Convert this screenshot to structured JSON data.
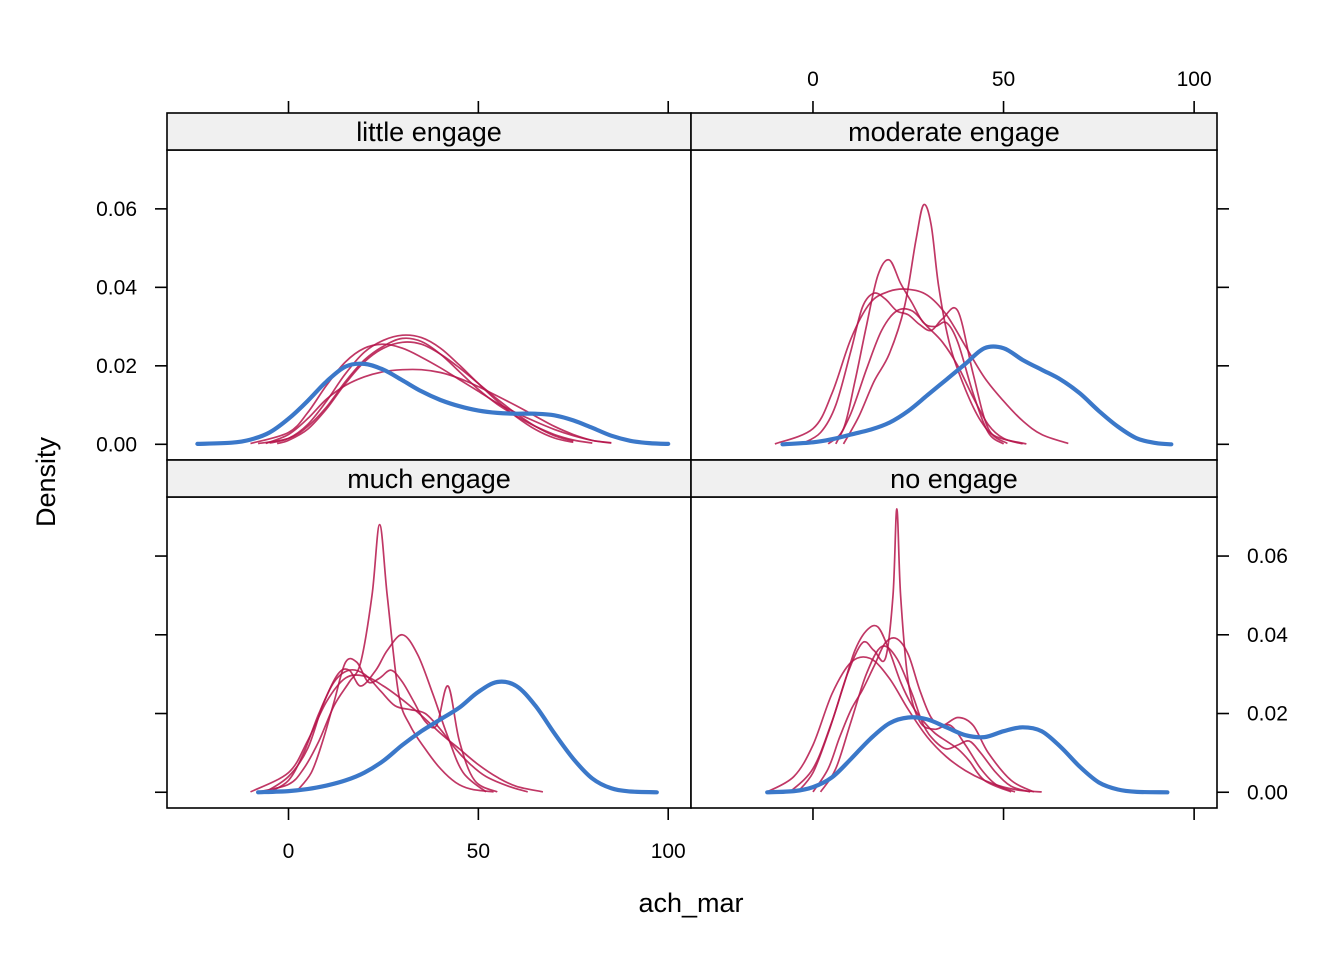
{
  "chart_data": {
    "type": "line",
    "xlabel": "ach_mar",
    "ylabel": "Density",
    "xlim": [
      -32,
      106
    ],
    "ylim": [
      -0.004,
      0.075
    ],
    "x_ticks": [
      0,
      50,
      100
    ],
    "y_ticks": [
      0.0,
      0.02,
      0.04,
      0.06
    ],
    "y_tick_labels": [
      "0.00",
      "0.02",
      "0.04",
      "0.06"
    ],
    "observed_color": "#3b78c9",
    "imputed_color": "#b5144a",
    "panels": [
      {
        "label": "little engage",
        "observed": {
          "x": [
            -24,
            -15,
            -10,
            -5,
            0,
            5,
            10,
            15,
            20,
            25,
            30,
            35,
            40,
            45,
            50,
            55,
            60,
            65,
            70,
            75,
            80,
            85,
            90,
            95,
            100
          ],
          "y": [
            0.0001,
            0.0004,
            0.0012,
            0.003,
            0.0065,
            0.011,
            0.016,
            0.0198,
            0.0205,
            0.019,
            0.0163,
            0.0135,
            0.0113,
            0.0097,
            0.0086,
            0.008,
            0.0078,
            0.0078,
            0.0074,
            0.0061,
            0.0042,
            0.0022,
            0.0009,
            0.0003,
            0.0001
          ]
        },
        "imputed": [
          {
            "x": [
              -10,
              0,
              5,
              10,
              15,
              20,
              25,
              30,
              35,
              40,
              45,
              50,
              55,
              60,
              65,
              70,
              75,
              80,
              85
            ],
            "y": [
              0.0002,
              0.003,
              0.008,
              0.015,
              0.021,
              0.0245,
              0.0255,
              0.0245,
              0.0222,
              0.0195,
              0.0165,
              0.0135,
              0.0105,
              0.008,
              0.0058,
              0.0038,
              0.0022,
              0.001,
              0.0004
            ]
          },
          {
            "x": [
              -8,
              0,
              5,
              10,
              15,
              20,
              25,
              30,
              35,
              40,
              45,
              50,
              55,
              60,
              65,
              70,
              75,
              80
            ],
            "y": [
              0.0002,
              0.0015,
              0.0045,
              0.0095,
              0.016,
              0.0215,
              0.025,
              0.027,
              0.0262,
              0.023,
              0.0185,
              0.014,
              0.0102,
              0.0072,
              0.0046,
              0.0025,
              0.0011,
              0.0003
            ]
          },
          {
            "x": [
              -5,
              0,
              5,
              10,
              15,
              20,
              25,
              30,
              35,
              40,
              45,
              50,
              55,
              60,
              65,
              70,
              75
            ],
            "y": [
              0.0003,
              0.0015,
              0.005,
              0.011,
              0.018,
              0.0235,
              0.0265,
              0.0278,
              0.0272,
              0.0245,
              0.0202,
              0.0155,
              0.011,
              0.007,
              0.0038,
              0.0016,
              0.0005
            ]
          },
          {
            "x": [
              -3,
              0,
              5,
              10,
              15,
              20,
              25,
              30,
              35,
              40,
              45,
              50,
              55,
              60,
              65,
              70,
              75
            ],
            "y": [
              0.0002,
              0.001,
              0.0038,
              0.009,
              0.0155,
              0.021,
              0.0245,
              0.026,
              0.0255,
              0.023,
              0.0195,
              0.0155,
              0.0115,
              0.0078,
              0.0046,
              0.0022,
              0.0008
            ]
          },
          {
            "x": [
              -6,
              0,
              5,
              10,
              15,
              20,
              25,
              30,
              35,
              40,
              45,
              50,
              55,
              60,
              65,
              70,
              75,
              80,
              85
            ],
            "y": [
              0.0002,
              0.0025,
              0.0065,
              0.0115,
              0.015,
              0.0172,
              0.0185,
              0.019,
              0.019,
              0.0183,
              0.0168,
              0.0147,
              0.0123,
              0.0098,
              0.0072,
              0.0046,
              0.0025,
              0.001,
              0.0003
            ]
          }
        ]
      },
      {
        "label": "moderate engage",
        "observed": {
          "x": [
            -8,
            0,
            5,
            10,
            15,
            20,
            25,
            30,
            35,
            40,
            45,
            50,
            55,
            60,
            65,
            70,
            75,
            80,
            85,
            90,
            94
          ],
          "y": [
            0.0,
            0.0005,
            0.0013,
            0.0025,
            0.0037,
            0.0055,
            0.0085,
            0.0125,
            0.0165,
            0.0205,
            0.0245,
            0.0245,
            0.0215,
            0.019,
            0.0165,
            0.013,
            0.0085,
            0.0045,
            0.0015,
            0.0003,
            0.0
          ]
        },
        "imputed": [
          {
            "x": [
              -10,
              0,
              5,
              10,
              15,
              20,
              25,
              30,
              35,
              40,
              45,
              50,
              55,
              60,
              67
            ],
            "y": [
              0.0001,
              0.004,
              0.013,
              0.027,
              0.036,
              0.039,
              0.0395,
              0.038,
              0.033,
              0.025,
              0.017,
              0.011,
              0.006,
              0.0025,
              0.0002
            ]
          },
          {
            "x": [
              -3,
              2,
              6,
              10,
              13,
              16,
              19,
              22,
              25,
              28,
              31,
              34,
              38,
              42,
              46,
              51
            ],
            "y": [
              0.0001,
              0.003,
              0.01,
              0.024,
              0.035,
              0.0385,
              0.037,
              0.034,
              0.033,
              0.0305,
              0.029,
              0.032,
              0.034,
              0.018,
              0.004,
              0.0002
            ]
          },
          {
            "x": [
              4,
              8,
              11,
              14,
              17,
              20,
              23,
              26,
              29,
              32,
              35,
              38,
              42,
              46,
              50
            ],
            "y": [
              0.0001,
              0.004,
              0.016,
              0.03,
              0.043,
              0.047,
              0.041,
              0.036,
              0.031,
              0.03,
              0.031,
              0.026,
              0.013,
              0.003,
              0.0001
            ]
          },
          {
            "x": [
              8,
              12,
              16,
              20,
              24,
              27,
              29,
              31,
              33,
              36,
              40,
              44,
              48,
              56
            ],
            "y": [
              0.0001,
              0.007,
              0.016,
              0.023,
              0.035,
              0.052,
              0.061,
              0.056,
              0.04,
              0.025,
              0.014,
              0.006,
              0.002,
              0.0001
            ]
          },
          {
            "x": [
              6,
              10,
              14,
              18,
              22,
              26,
              30,
              34,
              38,
              42,
              46,
              50,
              55
            ],
            "y": [
              0.0001,
              0.008,
              0.019,
              0.029,
              0.034,
              0.034,
              0.03,
              0.026,
              0.02,
              0.012,
              0.005,
              0.0015,
              0.0001
            ]
          }
        ]
      },
      {
        "label": "much engage",
        "observed": {
          "x": [
            -8,
            0,
            5,
            10,
            15,
            20,
            25,
            30,
            35,
            40,
            45,
            50,
            55,
            60,
            65,
            70,
            75,
            80,
            85,
            90,
            97
          ],
          "y": [
            0.0,
            0.0003,
            0.0008,
            0.0017,
            0.003,
            0.005,
            0.008,
            0.012,
            0.0155,
            0.0185,
            0.0215,
            0.0255,
            0.028,
            0.027,
            0.022,
            0.015,
            0.0085,
            0.0035,
            0.001,
            0.0002,
            0.0
          ]
        },
        "imputed": [
          {
            "x": [
              -10,
              0,
              5,
              10,
              15,
              20,
              25,
              30,
              35,
              40,
              45,
              50,
              55,
              60,
              67
            ],
            "y": [
              0.0001,
              0.005,
              0.013,
              0.023,
              0.029,
              0.0295,
              0.027,
              0.0235,
              0.0195,
              0.015,
              0.011,
              0.007,
              0.0038,
              0.0015,
              0.0001
            ]
          },
          {
            "x": [
              -8,
              0,
              4,
              8,
              12,
              16,
              19,
              22,
              24,
              26,
              29,
              32,
              36,
              40,
              44,
              48,
              54
            ],
            "y": [
              0.0001,
              0.002,
              0.006,
              0.013,
              0.022,
              0.028,
              0.033,
              0.05,
              0.068,
              0.05,
              0.025,
              0.017,
              0.011,
              0.006,
              0.0025,
              0.0008,
              0.0001
            ]
          },
          {
            "x": [
              -6,
              0,
              5,
              9,
              13,
              16,
              19,
              23,
              26,
              30,
              34,
              38,
              42,
              46,
              52
            ],
            "y": [
              0.0001,
              0.004,
              0.011,
              0.022,
              0.03,
              0.031,
              0.027,
              0.031,
              0.036,
              0.04,
              0.035,
              0.025,
              0.014,
              0.005,
              0.0001
            ]
          },
          {
            "x": [
              -5,
              0,
              4,
              8,
              12,
              16,
              20,
              24,
              28,
              32,
              36,
              40,
              44,
              48,
              52,
              58,
              63
            ],
            "y": [
              0.0001,
              0.003,
              0.01,
              0.02,
              0.028,
              0.031,
              0.03,
              0.026,
              0.022,
              0.021,
              0.02,
              0.016,
              0.011,
              0.007,
              0.004,
              0.0015,
              0.0001
            ]
          },
          {
            "x": [
              2,
              6,
              9,
              12,
              15,
              18,
              21,
              24,
              27,
              30,
              33,
              36,
              39,
              42,
              45,
              49,
              55
            ],
            "y": [
              0.0001,
              0.005,
              0.013,
              0.023,
              0.033,
              0.033,
              0.028,
              0.029,
              0.031,
              0.028,
              0.023,
              0.018,
              0.017,
              0.027,
              0.013,
              0.003,
              0.0001
            ]
          }
        ]
      },
      {
        "label": "no engage",
        "observed": {
          "x": [
            -12,
            -5,
            0,
            5,
            10,
            15,
            20,
            25,
            30,
            35,
            40,
            45,
            50,
            55,
            60,
            65,
            70,
            75,
            80,
            85,
            93
          ],
          "y": [
            0.0,
            0.0003,
            0.0013,
            0.0038,
            0.0085,
            0.0135,
            0.0175,
            0.019,
            0.0185,
            0.0165,
            0.0145,
            0.014,
            0.0155,
            0.0165,
            0.0155,
            0.0115,
            0.0065,
            0.0025,
            0.0007,
            0.0001,
            0.0
          ]
        },
        "imputed": [
          {
            "x": [
              -12,
              -5,
              0,
              5,
              10,
              15,
              20,
              25,
              30,
              35,
              40,
              45,
              50,
              55,
              60
            ],
            "y": [
              0.0001,
              0.004,
              0.012,
              0.025,
              0.033,
              0.034,
              0.029,
              0.021,
              0.014,
              0.009,
              0.0055,
              0.003,
              0.0013,
              0.0004,
              0.0001
            ]
          },
          {
            "x": [
              -6,
              0,
              5,
              9,
              13,
              16,
              19,
              21,
              22,
              23,
              25,
              28,
              32,
              36,
              40,
              44,
              48,
              53
            ],
            "y": [
              0.0001,
              0.006,
              0.018,
              0.03,
              0.038,
              0.036,
              0.034,
              0.05,
              0.072,
              0.05,
              0.028,
              0.018,
              0.016,
              0.017,
              0.012,
              0.006,
              0.002,
              0.0001
            ]
          },
          {
            "x": [
              -4,
              0,
              4,
              8,
              11,
              14,
              17,
              20,
              23,
              26,
              29,
              32,
              35,
              38,
              41,
              45,
              52
            ],
            "y": [
              0.0001,
              0.005,
              0.015,
              0.027,
              0.036,
              0.041,
              0.042,
              0.036,
              0.028,
              0.022,
              0.018,
              0.015,
              0.013,
              0.011,
              0.008,
              0.003,
              0.0001
            ]
          },
          {
            "x": [
              0,
              4,
              7,
              10,
              13,
              16,
              19,
              22,
              25,
              28,
              31,
              34,
              38,
              42,
              46,
              52,
              58
            ],
            "y": [
              0.0001,
              0.006,
              0.014,
              0.021,
              0.026,
              0.032,
              0.038,
              0.039,
              0.035,
              0.026,
              0.019,
              0.017,
              0.019,
              0.017,
              0.01,
              0.003,
              0.0001
            ]
          },
          {
            "x": [
              2,
              6,
              10,
              14,
              18,
              22,
              26,
              29,
              32,
              35,
              38,
              41,
              44,
              48,
              52,
              57
            ],
            "y": [
              0.0001,
              0.006,
              0.018,
              0.03,
              0.037,
              0.034,
              0.025,
              0.017,
              0.013,
              0.011,
              0.012,
              0.013,
              0.01,
              0.005,
              0.0015,
              0.0001
            ]
          }
        ]
      }
    ]
  }
}
